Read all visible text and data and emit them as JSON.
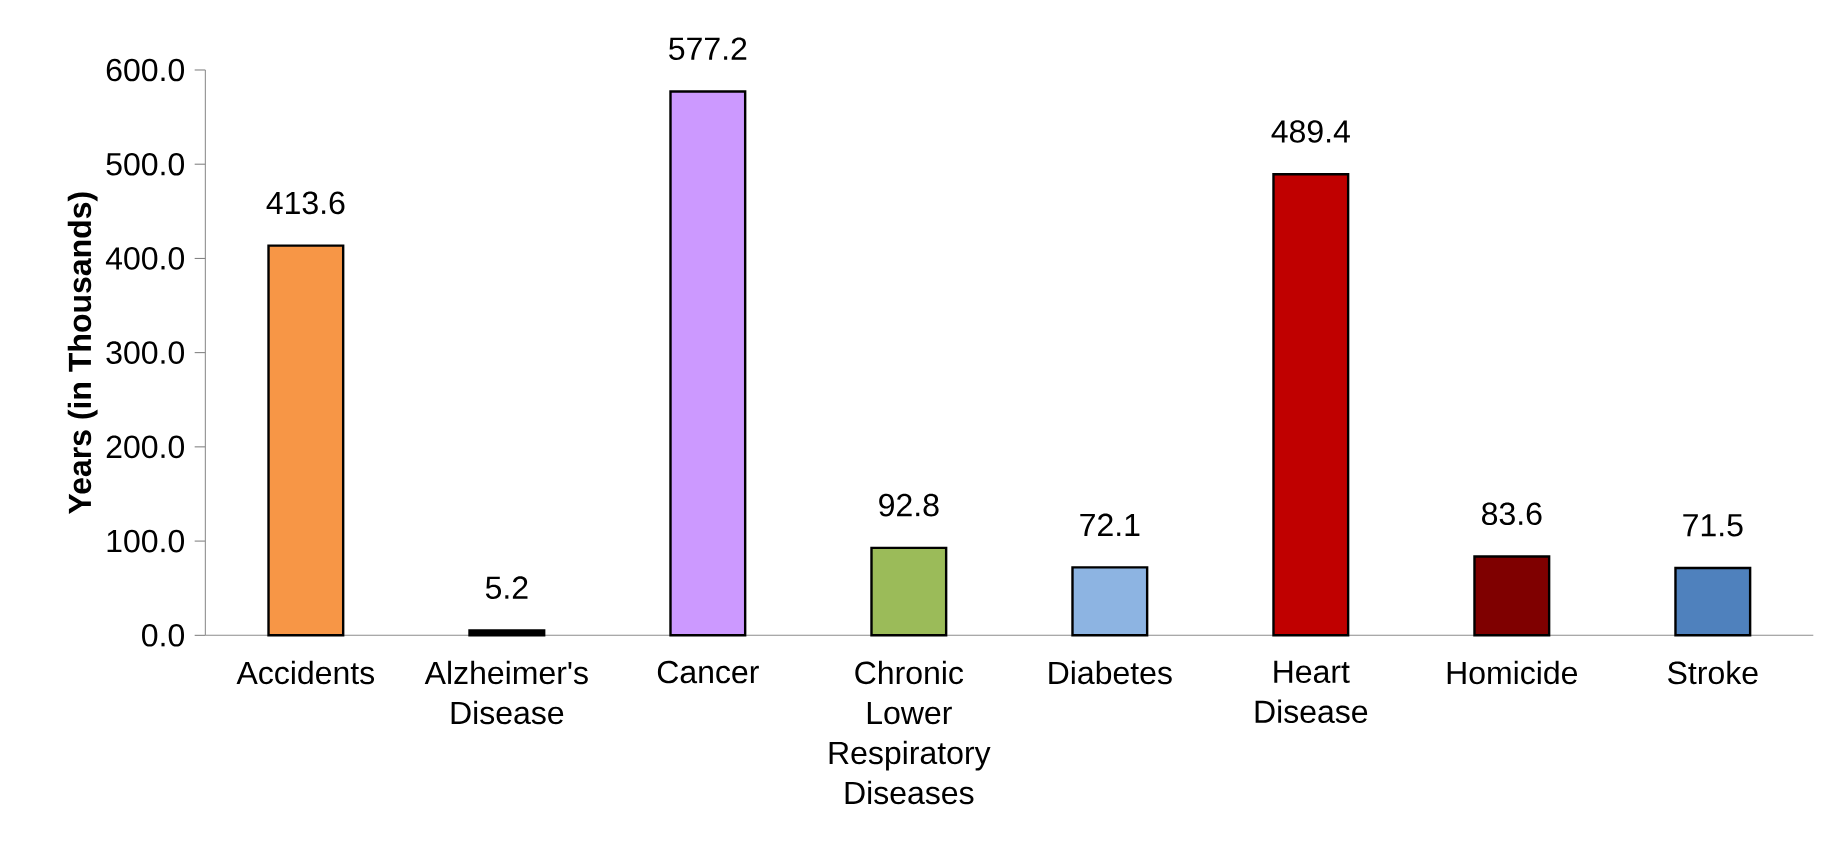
{
  "chart_data": {
    "type": "bar",
    "ylabel": "Years (in Thousands)",
    "categories": [
      "Accidents",
      "Alzheimer's Disease",
      "Cancer",
      "Chronic Lower Respiratory Diseases",
      "Diabetes",
      "Heart Disease",
      "Homicide",
      "Stroke"
    ],
    "values": [
      413.6,
      5.2,
      577.2,
      92.8,
      72.1,
      489.4,
      83.6,
      71.5
    ],
    "colors": [
      "#f79646",
      "#000000",
      "#cc99ff",
      "#9bbb59",
      "#8db4e2",
      "#c00000",
      "#7f0000",
      "#4f81bd"
    ],
    "ylim": [
      0,
      600
    ],
    "yticks": [
      {
        "value": 0,
        "label": "0.0"
      },
      {
        "value": 100,
        "label": "100.0"
      },
      {
        "value": 200,
        "label": "200.0"
      },
      {
        "value": 300,
        "label": "300.0"
      },
      {
        "value": 400,
        "label": "400.0"
      },
      {
        "value": 500,
        "label": "500.0"
      },
      {
        "value": 600,
        "label": "600.0"
      }
    ],
    "data_labels": true
  }
}
